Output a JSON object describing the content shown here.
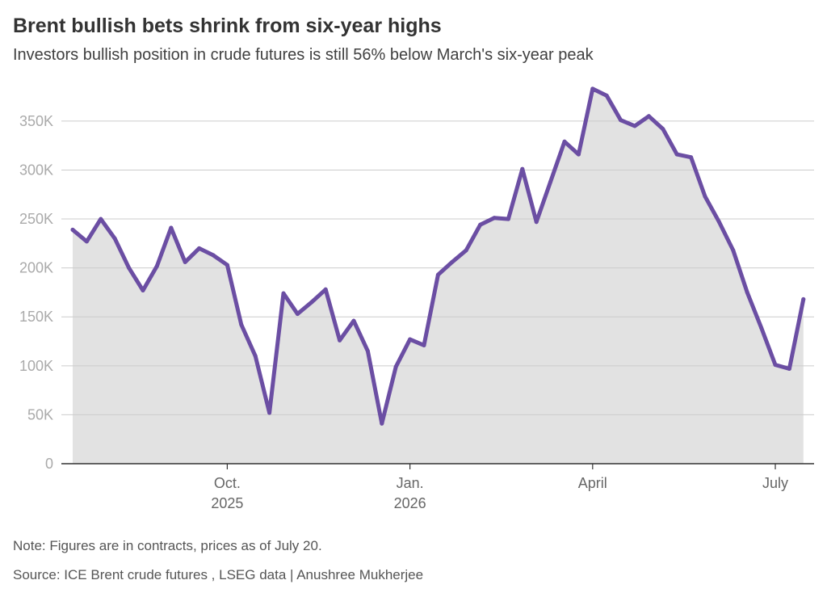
{
  "title": "Brent bullish bets shrink from six-year highs",
  "subtitle": "Investors bullish position in crude futures is still 56% below March's six-year peak",
  "note": "Note: Figures are in contracts, prices as of July 20.",
  "source": "Source: ICE Brent crude futures , LSEG data | Anushree Mukherjee",
  "chart_data": {
    "type": "area",
    "x_tick_labels": [
      {
        "line1": "Oct.",
        "line2": "2025",
        "index": 11
      },
      {
        "line1": "Jan.",
        "line2": "2026",
        "index": 24
      },
      {
        "line1": "April",
        "line2": "",
        "index": 37
      },
      {
        "line1": "July",
        "line2": "",
        "index": 50
      }
    ],
    "y_ticks": [
      {
        "value": 0,
        "label": "0"
      },
      {
        "value": 50000,
        "label": "50K"
      },
      {
        "value": 100000,
        "label": "100K"
      },
      {
        "value": 150000,
        "label": "150K"
      },
      {
        "value": 200000,
        "label": "200K"
      },
      {
        "value": 250000,
        "label": "250K"
      },
      {
        "value": 300000,
        "label": "300K"
      },
      {
        "value": 350000,
        "label": "350K"
      }
    ],
    "ylim": [
      0,
      380000
    ],
    "grid": true,
    "x_weeks": 52,
    "series": [
      {
        "values": [
          239000,
          227000,
          250000,
          230000,
          200000,
          177000,
          202000,
          241000,
          206000,
          220000,
          213000,
          203000,
          142000,
          110000,
          52000,
          174000,
          153000,
          165000,
          178000,
          126000,
          146000,
          115000,
          41000,
          99000,
          127000,
          121000,
          193000,
          206000,
          218000,
          244000,
          251000,
          250000,
          301000,
          247000,
          288000,
          329000,
          316000,
          383000,
          376000,
          351000,
          345000,
          355000,
          342000,
          316000,
          313000,
          273000,
          247000,
          218000,
          175000,
          139000,
          101000,
          97000,
          168000
        ]
      }
    ],
    "colors": {
      "line": "#6b4ea3",
      "area": "#e2e2e2",
      "grid": "#cccccc",
      "axis": "#333333"
    }
  }
}
